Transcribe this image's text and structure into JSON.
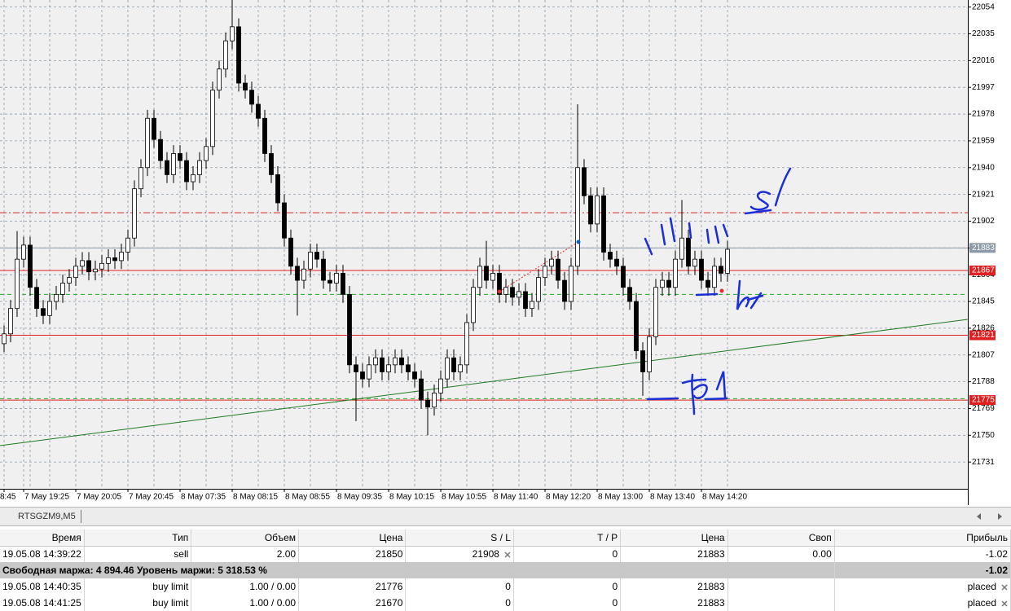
{
  "chart_data": {
    "type": "candlestick",
    "categories": [
      "8:45",
      null,
      null,
      "7 May 19:25",
      null,
      null,
      null,
      null,
      null,
      null,
      null,
      "7 May 20:05",
      null,
      null,
      null,
      null,
      null,
      null,
      null,
      "7 May 20:45",
      null,
      null,
      null,
      null,
      null,
      null,
      null,
      "8 May 07:35",
      null,
      null,
      null,
      null,
      null,
      null,
      null,
      "8 May 08:15",
      null,
      null,
      null,
      null,
      null,
      null,
      null,
      "8 May 08:55",
      null,
      null,
      null,
      null,
      null,
      null,
      null,
      "8 May 09:35",
      null,
      null,
      null,
      null,
      null,
      null,
      null,
      "8 May 10:15",
      null,
      null,
      null,
      null,
      null,
      null,
      null,
      "8 May 10:55",
      null,
      null,
      null,
      null,
      null,
      null,
      null,
      "8 May 11:40",
      null,
      null,
      null,
      null,
      null,
      null,
      null,
      "8 May 12:20",
      null,
      null,
      null,
      null,
      null,
      null,
      null,
      "8 May 13:00",
      null,
      null,
      null,
      null,
      null,
      null,
      null,
      "8 May 13:40",
      null,
      null,
      null,
      null,
      null,
      null,
      null,
      "8 May 14:20",
      null,
      null,
      null,
      null
    ],
    "open": [
      21815,
      21822,
      21840,
      21875,
      21885,
      21855,
      21840,
      21835,
      21845,
      21850,
      21858,
      21862,
      21870,
      21874,
      21866,
      21868,
      21872,
      21876,
      21874,
      21880,
      21890,
      21925,
      21940,
      21975,
      21960,
      21945,
      21935,
      21950,
      21945,
      21930,
      21935,
      21945,
      21955,
      21995,
      22010,
      22030,
      22040,
      22000,
      21995,
      21985,
      21975,
      21950,
      21935,
      21915,
      21890,
      21870,
      21860,
      21868,
      21880,
      21875,
      21860,
      21858,
      21865,
      21850,
      21800,
      21795,
      21790,
      21800,
      21805,
      21795,
      21800,
      21805,
      21800,
      21795,
      21790,
      21775,
      21770,
      21780,
      21790,
      21805,
      21795,
      21800,
      21830,
      21855,
      21870,
      21860,
      21865,
      21850,
      21855,
      21848,
      21852,
      21840,
      21845,
      21862,
      21870,
      21875,
      21860,
      21845,
      21870,
      21940,
      21920,
      21900,
      21920,
      21880,
      21875,
      21870,
      21855,
      21845,
      21810,
      21795,
      21820,
      21855,
      21860,
      21855,
      21875,
      21890,
      21870,
      21875,
      21860,
      21855,
      21870,
      21865
    ],
    "high": [
      21828,
      21846,
      21895,
      21891,
      21891,
      21861,
      21846,
      21851,
      21856,
      21864,
      21868,
      21876,
      21880,
      21880,
      21874,
      21878,
      21882,
      21882,
      21886,
      21896,
      21931,
      21946,
      21981,
      21981,
      21966,
      21951,
      21956,
      21956,
      21951,
      21941,
      21951,
      21961,
      22001,
      22016,
      22036,
      22059,
      22046,
      22006,
      22001,
      21991,
      21981,
      21956,
      21941,
      21921,
      21896,
      21876,
      21874,
      21886,
      21886,
      21881,
      21866,
      21871,
      21871,
      21856,
      21806,
      21801,
      21806,
      21811,
      21811,
      21806,
      21811,
      21811,
      21806,
      21801,
      21796,
      21781,
      21786,
      21796,
      21811,
      21811,
      21806,
      21836,
      21861,
      21876,
      21888,
      21871,
      21871,
      21861,
      21861,
      21858,
      21858,
      21851,
      21868,
      21876,
      21881,
      21881,
      21866,
      21876,
      21985,
      21946,
      21926,
      21926,
      21926,
      21886,
      21881,
      21876,
      21861,
      21851,
      21816,
      21826,
      21861,
      21866,
      21866,
      21881,
      21917,
      21896,
      21881,
      21881,
      21866,
      21876,
      21876,
      21888
    ],
    "low": [
      21809,
      21816,
      21834,
      21869,
      21849,
      21834,
      21829,
      21829,
      21839,
      21844,
      21852,
      21856,
      21864,
      21860,
      21860,
      21862,
      21866,
      21868,
      21868,
      21874,
      21884,
      21919,
      21934,
      21954,
      21939,
      21929,
      21929,
      21939,
      21924,
      21924,
      21929,
      21939,
      21949,
      21989,
      22004,
      22024,
      21994,
      21989,
      21979,
      21969,
      21944,
      21929,
      21909,
      21884,
      21864,
      21835,
      21854,
      21862,
      21869,
      21854,
      21852,
      21852,
      21844,
      21794,
      21760,
      21784,
      21784,
      21794,
      21789,
      21789,
      21794,
      21794,
      21789,
      21784,
      21769,
      21750,
      21764,
      21774,
      21784,
      21789,
      21789,
      21794,
      21824,
      21849,
      21854,
      21854,
      21844,
      21844,
      21842,
      21842,
      21834,
      21834,
      21839,
      21856,
      21864,
      21854,
      21839,
      21839,
      21864,
      21914,
      21894,
      21894,
      21874,
      21869,
      21864,
      21849,
      21839,
      21804,
      21778,
      21789,
      21814,
      21849,
      21849,
      21849,
      21869,
      21864,
      21864,
      21854,
      21849,
      21849,
      21859,
      21859
    ],
    "close": [
      21822,
      21840,
      21875,
      21885,
      21855,
      21840,
      21835,
      21845,
      21850,
      21858,
      21862,
      21870,
      21874,
      21866,
      21868,
      21872,
      21876,
      21874,
      21880,
      21890,
      21925,
      21940,
      21975,
      21960,
      21945,
      21935,
      21950,
      21945,
      21930,
      21935,
      21945,
      21955,
      21995,
      22010,
      22030,
      22040,
      22000,
      21995,
      21985,
      21975,
      21950,
      21935,
      21915,
      21890,
      21870,
      21860,
      21868,
      21880,
      21875,
      21860,
      21858,
      21865,
      21850,
      21800,
      21795,
      21790,
      21800,
      21805,
      21795,
      21800,
      21805,
      21800,
      21795,
      21790,
      21775,
      21770,
      21780,
      21790,
      21805,
      21795,
      21800,
      21830,
      21855,
      21870,
      21860,
      21865,
      21850,
      21855,
      21848,
      21852,
      21840,
      21845,
      21862,
      21870,
      21875,
      21860,
      21845,
      21870,
      21940,
      21920,
      21900,
      21920,
      21880,
      21875,
      21870,
      21855,
      21845,
      21810,
      21795,
      21820,
      21855,
      21860,
      21855,
      21875,
      21890,
      21870,
      21875,
      21860,
      21855,
      21870,
      21865,
      21882
    ],
    "ylim": [
      21712,
      22059
    ],
    "yticks": [
      22054,
      22035,
      22016,
      21997,
      21978,
      21959,
      21940,
      21921,
      21902,
      21883,
      21864,
      21845,
      21826,
      21807,
      21788,
      21769,
      21750,
      21731
    ],
    "grid": true,
    "price_lines": [
      {
        "value": 21908,
        "color": "#e02020",
        "style": "dashdot",
        "tag": false
      },
      {
        "value": 21883,
        "color": "#8c9aa8",
        "style": "solid",
        "tag": true
      },
      {
        "value": 21867,
        "color": "#e02020",
        "style": "solid",
        "tag": true
      },
      {
        "value": 21850,
        "color": "#22aa22",
        "style": "dashed",
        "tag": false
      },
      {
        "value": 21821,
        "color": "#e02020",
        "style": "solid",
        "tag": true
      },
      {
        "value": 21776,
        "color": "#22aa22",
        "style": "dashed",
        "tag": false
      },
      {
        "value": 21775,
        "color": "#e02020",
        "style": "solid",
        "tag": true
      }
    ]
  },
  "tab": "RTSGZM9,M5",
  "table": {
    "headers": [
      "Время",
      "Тип",
      "Объем",
      "Цена",
      "S / L",
      "T / P",
      "Цена",
      "Своп",
      "Прибыль"
    ],
    "rows": [
      [
        "19.05.08 14:39:22",
        "sell",
        "2.00",
        "21850",
        "21908",
        "0",
        "21883",
        "0.00",
        "-1.02"
      ],
      [
        "19.05.08 14:40:35",
        "buy limit",
        "1.00 / 0.00",
        "21776",
        "0",
        "0",
        "21883",
        null,
        "placed"
      ],
      [
        "19.05.08 14:41:25",
        "buy limit",
        "1.00 / 0.00",
        "21670",
        "0",
        "0",
        "21883",
        null,
        "placed"
      ]
    ]
  },
  "summary": {
    "text": "Свободная маржа: 4 894.46  Уровень маржи: 5 318.53 %",
    "profit": "-1.02"
  }
}
